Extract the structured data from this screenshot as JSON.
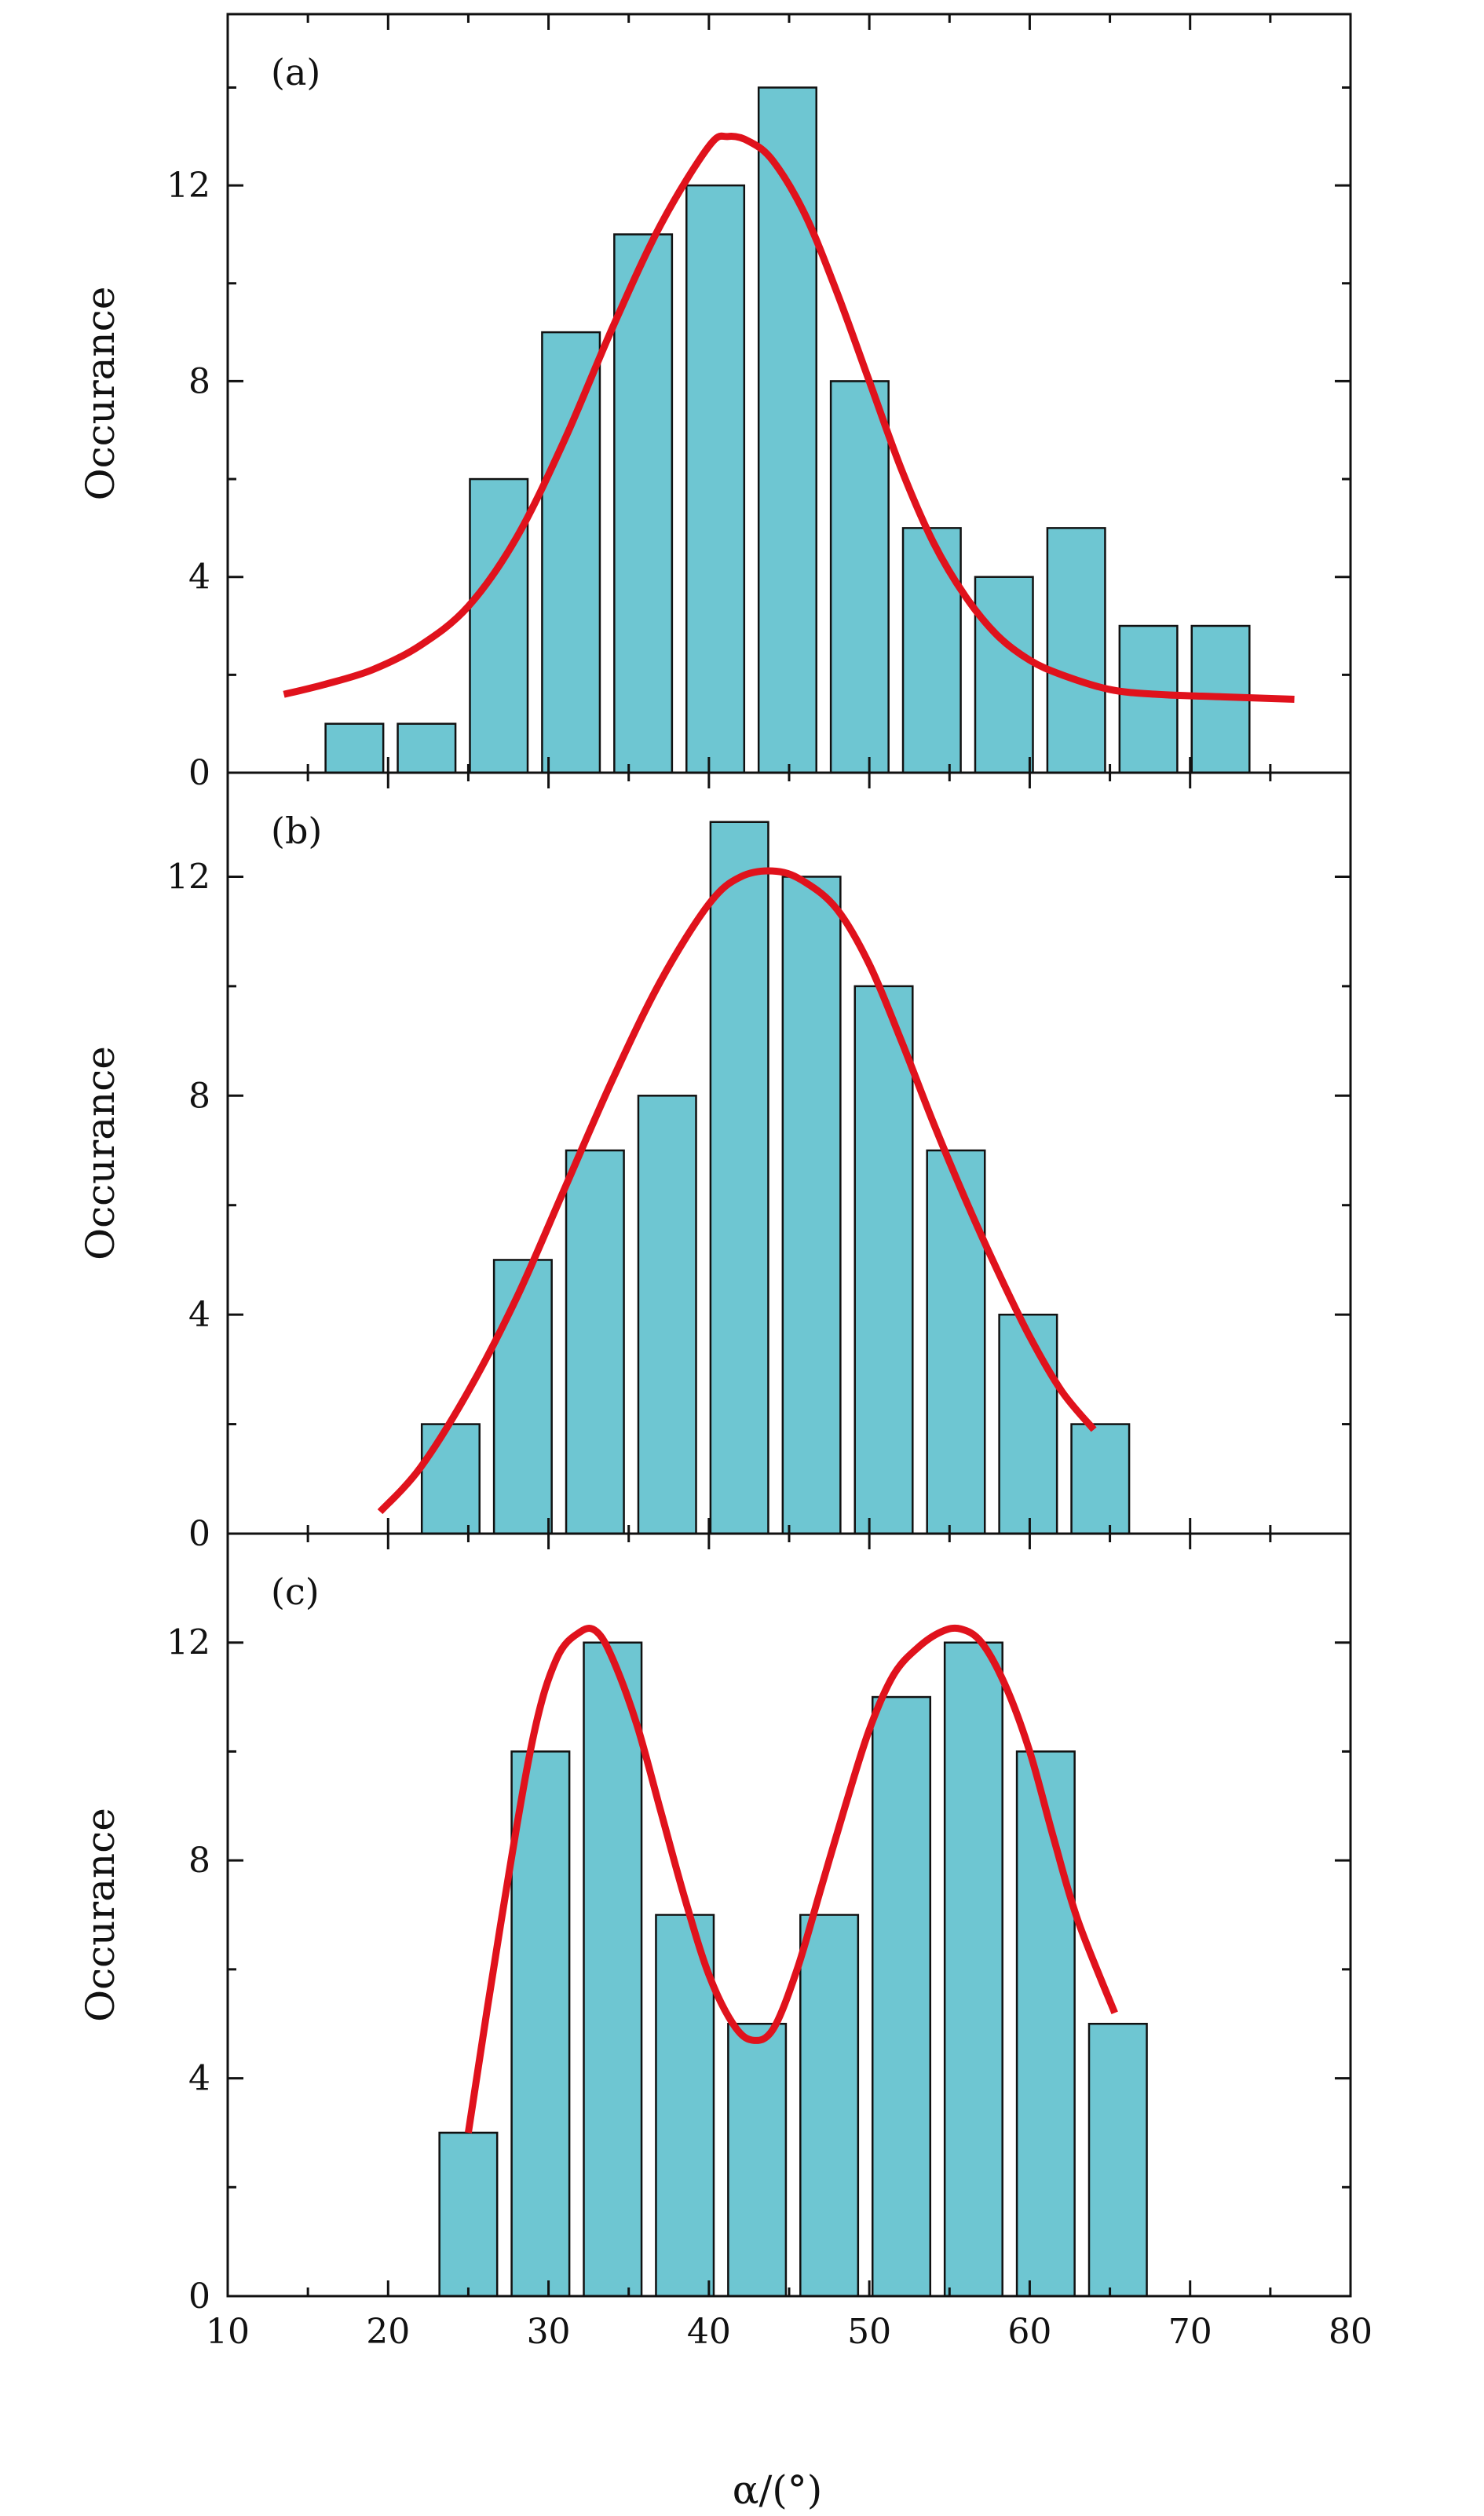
{
  "colors": {
    "bar": "#6ec6d2",
    "fit": "#e0121c",
    "axis": "#111111"
  },
  "shared_x": {
    "label": "α/(°)",
    "ticks": [
      "10",
      "20",
      "30",
      "40",
      "50",
      "60",
      "70",
      "80"
    ],
    "range": [
      10,
      80
    ]
  },
  "chart_data": [
    {
      "type": "bar",
      "panel_label": "(a)",
      "ylabel": "Occurance",
      "ylim": [
        0,
        15.5
      ],
      "yticks": [
        "0",
        "4",
        "8",
        "12"
      ],
      "bar_width": 3.6,
      "bars": {
        "x": [
          17.9,
          22.4,
          26.9,
          31.4,
          35.9,
          40.4,
          44.9,
          49.4,
          53.9,
          58.4,
          62.9,
          67.4,
          71.9
        ],
        "values": [
          1,
          1,
          6,
          9,
          11,
          12,
          14,
          8,
          5,
          4,
          5,
          3,
          3
        ]
      },
      "fit": {
        "x": [
          13.5,
          16,
          19,
          22,
          25,
          28,
          31,
          34,
          37,
          40,
          41.2,
          42.5,
          44,
          46,
          48,
          50,
          52,
          54,
          56,
          58,
          60,
          62,
          65,
          68,
          72,
          76.5
        ],
        "y": [
          1.6,
          1.8,
          2.1,
          2.6,
          3.4,
          4.8,
          6.8,
          9.1,
          11.2,
          12.8,
          13.0,
          12.9,
          12.5,
          11.4,
          9.8,
          8.0,
          6.2,
          4.7,
          3.6,
          2.8,
          2.3,
          2.0,
          1.7,
          1.6,
          1.55,
          1.5
        ]
      }
    },
    {
      "type": "bar",
      "panel_label": "(b)",
      "ylabel": "Occurance",
      "ylim": [
        0,
        13.9
      ],
      "yticks": [
        "0",
        "4",
        "8",
        "12"
      ],
      "bar_width": 3.6,
      "bars": {
        "x": [
          23.9,
          28.4,
          32.9,
          37.4,
          41.9,
          46.4,
          50.9,
          55.4,
          59.9,
          64.4
        ],
        "values": [
          2,
          5,
          7,
          8,
          13,
          12,
          10,
          7,
          4,
          2
        ]
      },
      "fit": {
        "x": [
          19.5,
          22,
          25,
          28,
          31,
          34,
          37,
          40,
          42,
          44.2,
          46,
          48,
          50,
          52,
          54,
          56,
          58,
          60,
          62,
          64
        ],
        "y": [
          0.4,
          1.2,
          2.6,
          4.3,
          6.3,
          8.3,
          10.1,
          11.5,
          12.0,
          12.1,
          11.9,
          11.4,
          10.4,
          9.0,
          7.5,
          6.1,
          4.8,
          3.6,
          2.6,
          1.9
        ]
      }
    },
    {
      "type": "bar",
      "panel_label": "(c)",
      "ylabel": "Occurance",
      "ylim": [
        0,
        14.0
      ],
      "yticks": [
        "0",
        "4",
        "8",
        "12"
      ],
      "bar_width": 3.6,
      "bars": {
        "x": [
          25.0,
          29.5,
          34.0,
          38.5,
          43.0,
          47.5,
          52.0,
          56.5,
          61.0,
          65.5
        ],
        "values": [
          3,
          10,
          12,
          7,
          5,
          7,
          11,
          12,
          10,
          5
        ]
      },
      "fit": {
        "x": [
          25,
          27,
          29,
          30.5,
          32,
          33,
          34,
          35.5,
          37,
          38.5,
          40,
          41.5,
          42.7,
          44,
          45.5,
          47,
          48.5,
          50,
          51.5,
          53,
          54.5,
          55.7,
          57,
          58.5,
          60,
          61.5,
          63,
          65.3
        ],
        "y": [
          3.0,
          6.8,
          10.2,
          11.7,
          12.2,
          12.2,
          11.7,
          10.5,
          8.9,
          7.3,
          5.9,
          5.0,
          4.7,
          4.9,
          6.0,
          7.5,
          9.0,
          10.4,
          11.4,
          11.9,
          12.2,
          12.25,
          12.0,
          11.2,
          10.0,
          8.4,
          6.9,
          5.2
        ]
      }
    }
  ]
}
